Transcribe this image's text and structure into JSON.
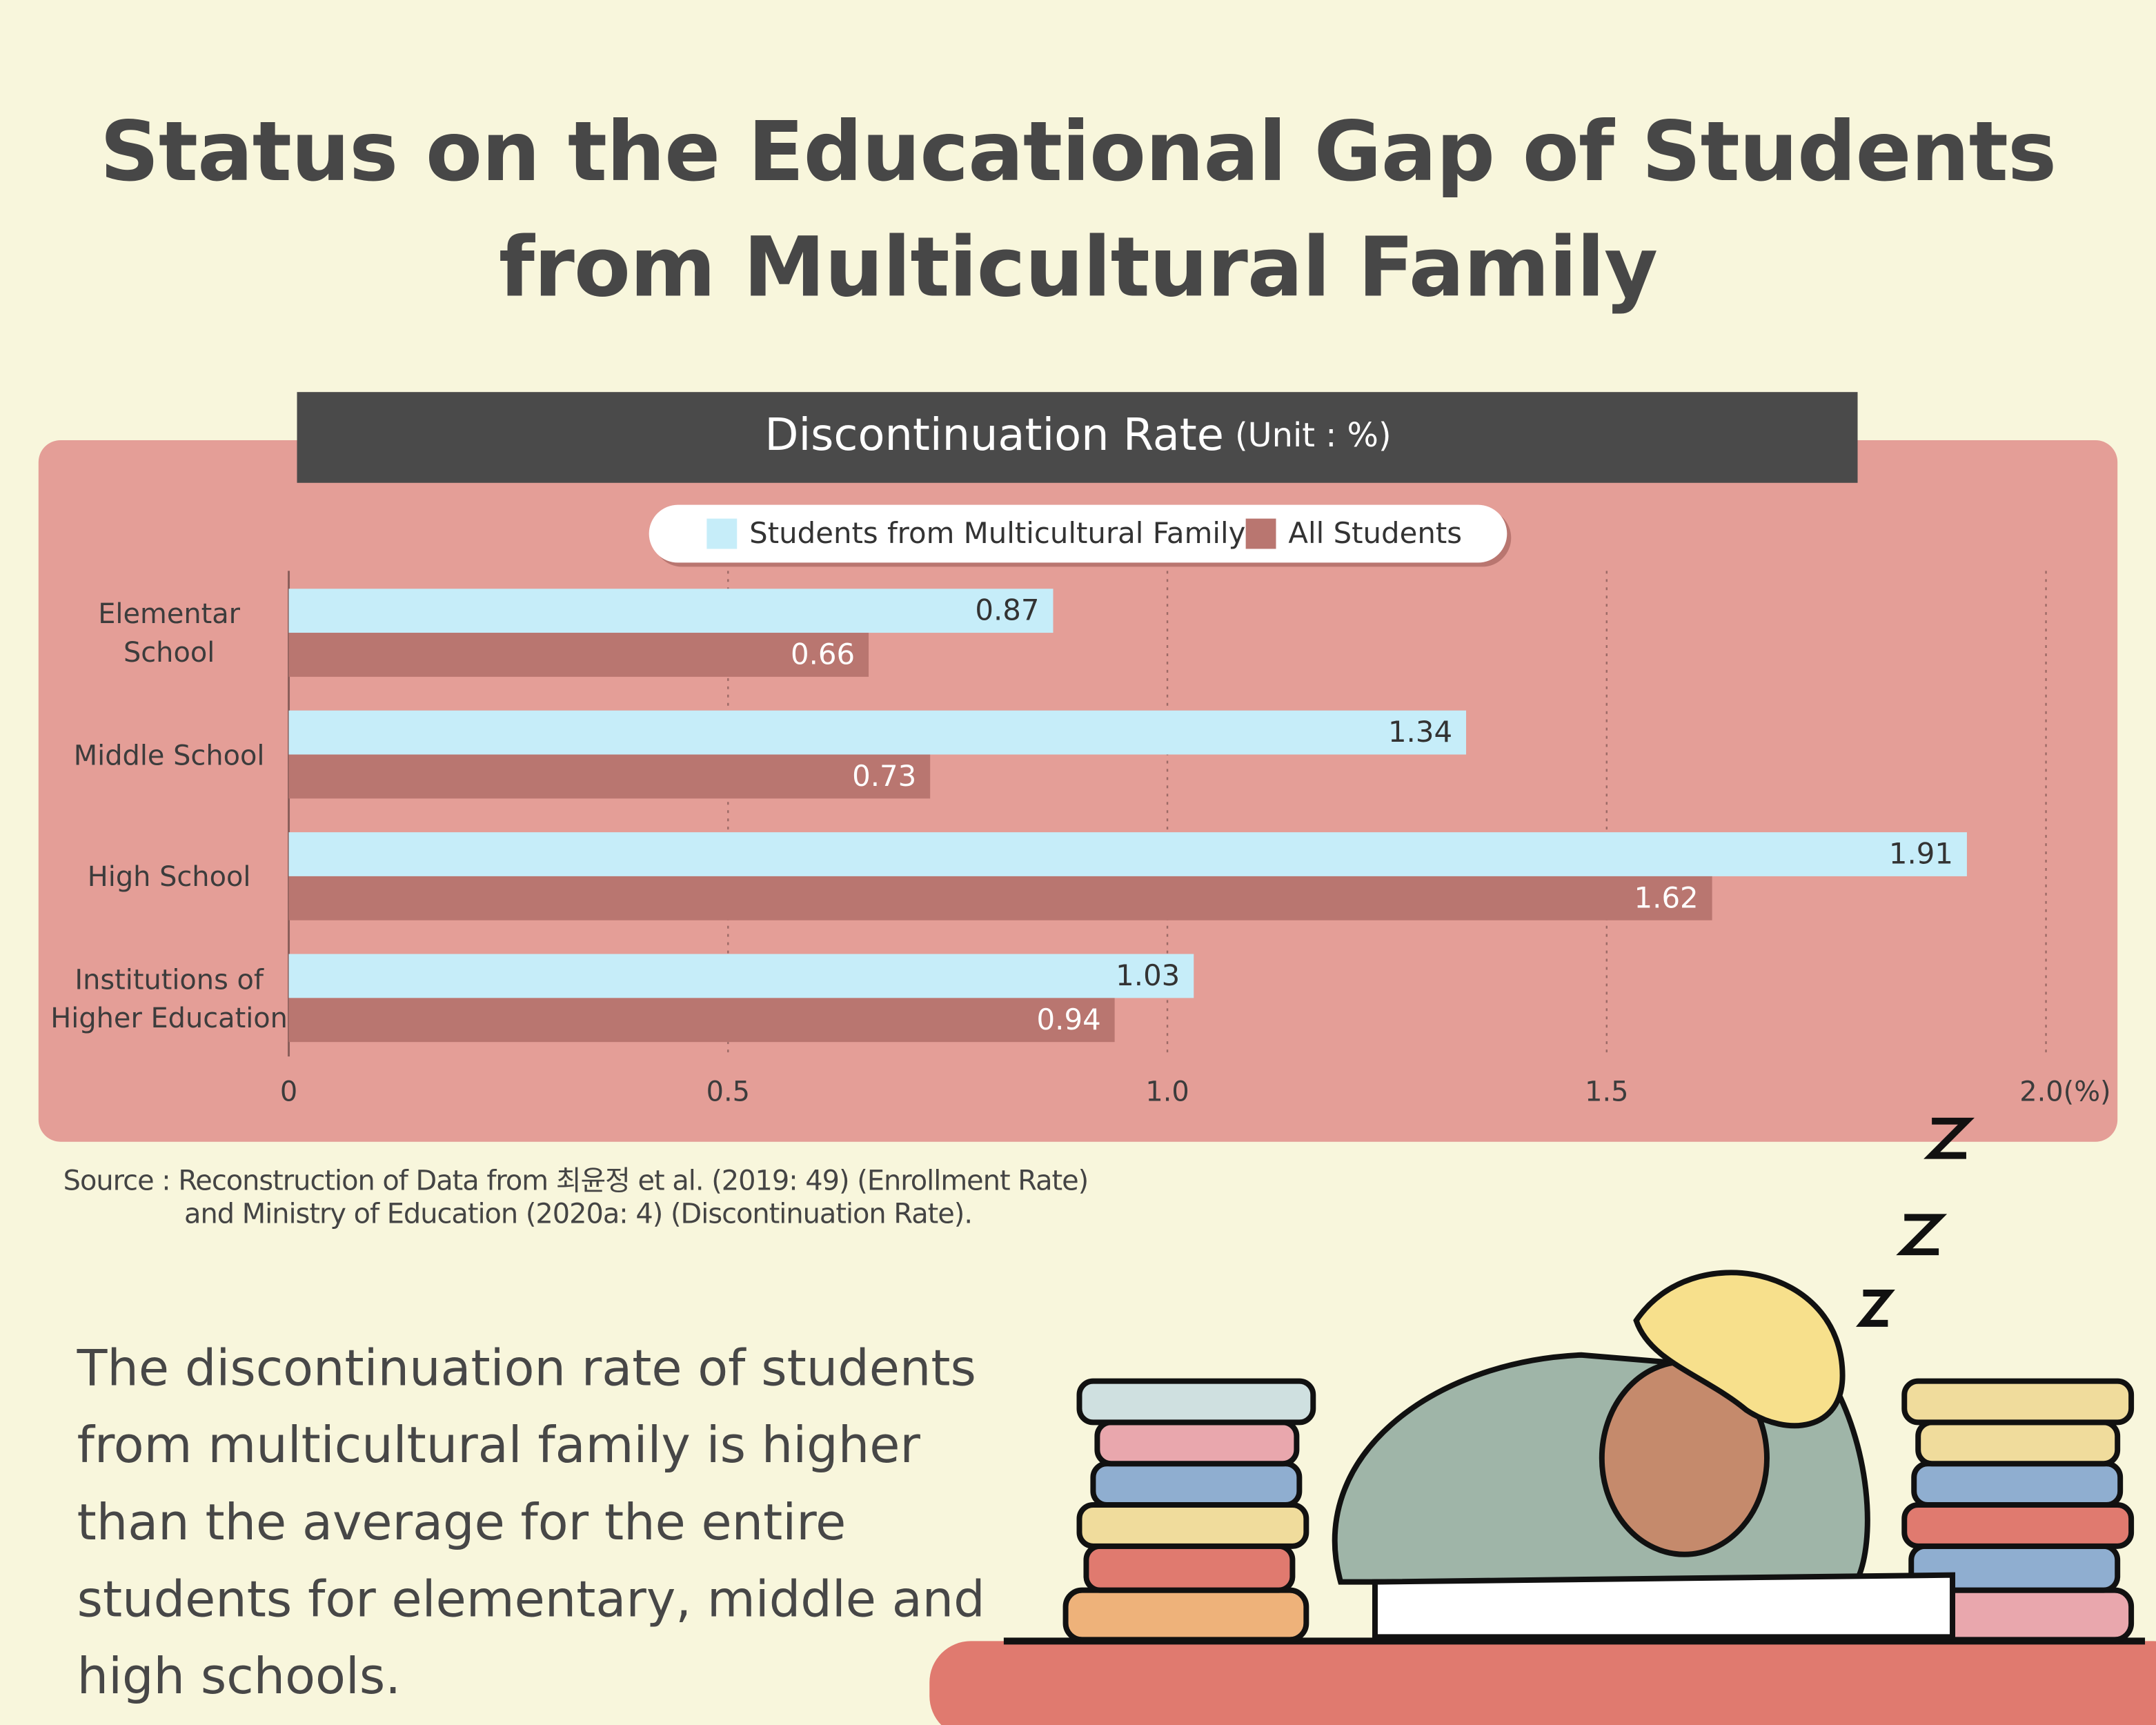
{
  "title": [
    "Status on the Educational Gap of Students",
    "from Multicultural Family"
  ],
  "chart_data": {
    "type": "bar",
    "orientation": "horizontal",
    "title": "Discontinuation Rate",
    "unit": "(Unit : %)",
    "categories": [
      "Elementar\nSchool",
      "Middle School",
      "High School",
      "Institutions of\nHigher Education"
    ],
    "series": [
      {
        "name": "Students from Multicultural Family",
        "color": "#c6edf9",
        "values": [
          0.87,
          1.34,
          1.91,
          1.03
        ]
      },
      {
        "name": "All Students",
        "color": "#b97670",
        "values": [
          0.66,
          0.73,
          1.62,
          0.94
        ]
      }
    ],
    "xlim": [
      0,
      2
    ],
    "xticks": [
      0,
      0.5,
      {
        "value": 1,
        "label": "1.0"
      },
      1.5,
      {
        "value": 2,
        "label": "2.0(%)"
      }
    ],
    "grid": true
  },
  "source": [
    "Source : Reconstruction of Data from 최윤정 et al. (2019: 49) (Enrollment Rate)",
    "and Ministry of Education (2020a: 4) (Discontinuation Rate)."
  ],
  "caption": "The discontinuation rate of students from multicultural family is higher than the average for the entire students for elementary, middle and high schools."
}
